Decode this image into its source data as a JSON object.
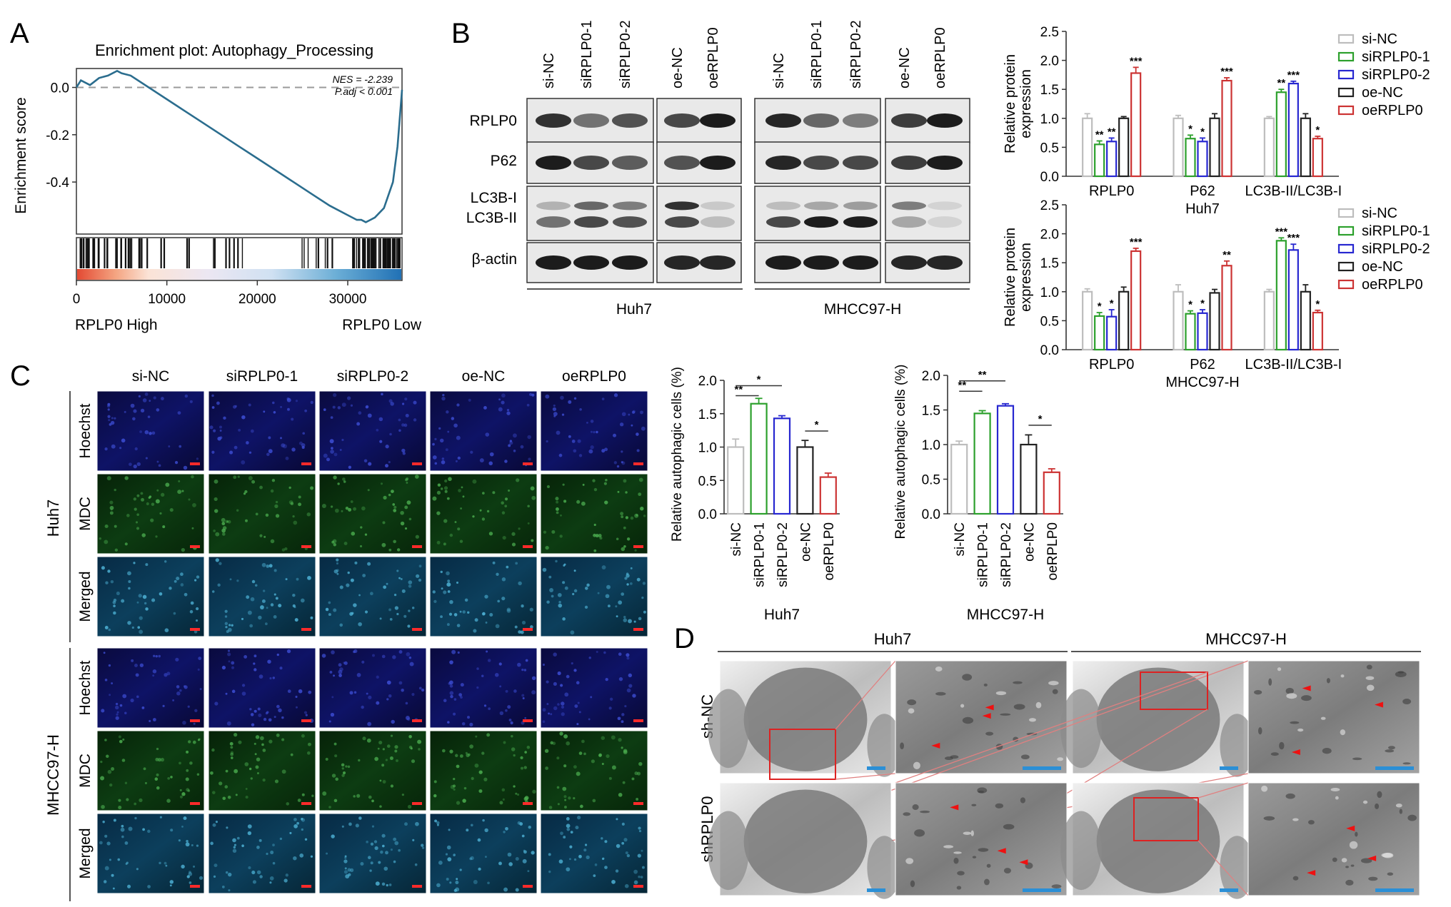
{
  "panels": {
    "A": {
      "letter": "A",
      "title": "Enrichment plot: Autophagy_Processing",
      "ylabel": "Enrichment score",
      "nes": "NES = -2.239",
      "padj": "P.adj < 0.001",
      "left_label": "RPLP0 High",
      "right_label": "RPLP0 Low"
    },
    "B": {
      "letter": "B",
      "lanes": [
        "si-NC",
        "siRPLP0-1",
        "siRPLP0-2",
        "oe-NC",
        "oeRPLP0"
      ],
      "rows": [
        "RPLP0",
        "P62",
        "LC3B-I",
        "LC3B-II",
        "β-actin"
      ],
      "cell_lines": [
        "Huh7",
        "MHCC97-H"
      ],
      "ylabel": "Relative protein expression"
    },
    "C": {
      "letter": "C",
      "columns": [
        "si-NC",
        "siRPLP0-1",
        "siRPLP0-2",
        "oe-NC",
        "oeRPLP0"
      ],
      "rows": [
        "Hoechst",
        "MDC",
        "Merged"
      ],
      "groups": [
        "Huh7",
        "MHCC97-H"
      ],
      "ylabel": "Relative autophagic cells (%)"
    },
    "D": {
      "letter": "D",
      "groups": [
        "Huh7",
        "MHCC97-H"
      ],
      "rows": [
        "sh-NC",
        "shRPLP0"
      ]
    }
  },
  "chart_data": [
    {
      "id": "A-gsea",
      "type": "line",
      "title": "Enrichment plot: Autophagy_Processing",
      "ylabel": "Enrichment score",
      "xlim": [
        0,
        36000
      ],
      "ylim": [
        -0.62,
        0.08
      ],
      "x_ticks": [
        0,
        10000,
        20000,
        30000
      ],
      "y_ticks": [
        0.0,
        -0.2,
        -0.4
      ],
      "x": [
        0,
        500,
        1500,
        2500,
        3500,
        4500,
        5000,
        6000,
        8000,
        10000,
        12000,
        14000,
        16000,
        18000,
        20000,
        22000,
        24000,
        26000,
        28000,
        30000,
        31000,
        31500,
        32000,
        32500,
        33000,
        34000,
        35000,
        35500,
        36000
      ],
      "y": [
        0.0,
        0.03,
        0.01,
        0.04,
        0.05,
        0.07,
        0.06,
        0.05,
        0.0,
        -0.05,
        -0.1,
        -0.15,
        -0.2,
        -0.25,
        -0.3,
        -0.35,
        -0.4,
        -0.45,
        -0.5,
        -0.54,
        -0.56,
        -0.56,
        -0.57,
        -0.56,
        -0.55,
        -0.51,
        -0.4,
        -0.25,
        -0.01
      ],
      "baseline": 0.0
    },
    {
      "id": "B-huh7",
      "type": "bar",
      "xlabel": "Huh7",
      "ylabel": "Relative protein expression",
      "ylim": [
        0,
        2.5
      ],
      "y_ticks": [
        0.0,
        0.5,
        1.0,
        1.5,
        2.0,
        2.5
      ],
      "categories": [
        "RPLP0",
        "P62",
        "LC3B-II/LC3B-I"
      ],
      "series": [
        {
          "name": "si-NC",
          "color": "#bdbdbd",
          "values": [
            1.0,
            1.0,
            1.0
          ],
          "errors": [
            0.08,
            0.05,
            0.03
          ],
          "sig": [
            "",
            "",
            ""
          ]
        },
        {
          "name": "siRPLP0-1",
          "color": "#2ca02c",
          "values": [
            0.55,
            0.65,
            1.45
          ],
          "errors": [
            0.06,
            0.06,
            0.05
          ],
          "sig": [
            "**",
            "*",
            "**"
          ]
        },
        {
          "name": "siRPLP0-2",
          "color": "#2727d0",
          "values": [
            0.6,
            0.6,
            1.6
          ],
          "errors": [
            0.06,
            0.06,
            0.04
          ],
          "sig": [
            "**",
            "*",
            "***"
          ]
        },
        {
          "name": "oe-NC",
          "color": "#222222",
          "values": [
            1.0,
            1.0,
            1.0
          ],
          "errors": [
            0.03,
            0.08,
            0.08
          ],
          "sig": [
            "",
            "",
            ""
          ]
        },
        {
          "name": "oeRPLP0",
          "color": "#cc3333",
          "values": [
            1.78,
            1.65,
            0.65
          ],
          "errors": [
            0.1,
            0.05,
            0.04
          ],
          "sig": [
            "***",
            "***",
            "*"
          ]
        }
      ]
    },
    {
      "id": "B-mhcc",
      "type": "bar",
      "xlabel": "MHCC97-H",
      "ylabel": "Relative protein expression",
      "ylim": [
        0,
        2.5
      ],
      "y_ticks": [
        0.0,
        0.5,
        1.0,
        1.5,
        2.0,
        2.5
      ],
      "categories": [
        "RPLP0",
        "P62",
        "LC3B-II/LC3B-I"
      ],
      "series": [
        {
          "name": "si-NC",
          "color": "#bdbdbd",
          "values": [
            1.0,
            1.0,
            1.0
          ],
          "errors": [
            0.05,
            0.12,
            0.04
          ],
          "sig": [
            "",
            "",
            ""
          ]
        },
        {
          "name": "siRPLP0-1",
          "color": "#2ca02c",
          "values": [
            0.58,
            0.62,
            1.88
          ],
          "errors": [
            0.06,
            0.05,
            0.05
          ],
          "sig": [
            "*",
            "*",
            "***"
          ]
        },
        {
          "name": "siRPLP0-2",
          "color": "#2727d0",
          "values": [
            0.57,
            0.63,
            1.72
          ],
          "errors": [
            0.12,
            0.06,
            0.1
          ],
          "sig": [
            "*",
            "*",
            "***"
          ]
        },
        {
          "name": "oe-NC",
          "color": "#222222",
          "values": [
            1.0,
            0.98,
            1.0
          ],
          "errors": [
            0.08,
            0.06,
            0.12
          ],
          "sig": [
            "",
            "",
            ""
          ]
        },
        {
          "name": "oeRPLP0",
          "color": "#cc3333",
          "values": [
            1.7,
            1.45,
            0.64
          ],
          "errors": [
            0.05,
            0.08,
            0.04
          ],
          "sig": [
            "***",
            "**",
            "*"
          ]
        }
      ]
    },
    {
      "id": "C-huh7",
      "type": "bar",
      "xlabel": "Huh7",
      "ylabel": "Relative autophagic cells (%)",
      "ylim": [
        0,
        2.0
      ],
      "y_ticks": [
        0.0,
        0.5,
        1.0,
        1.5,
        2.0
      ],
      "categories": [
        "si-NC",
        "siRPLP0-1",
        "siRPLP0-2",
        "oe-NC",
        "oeRPLP0"
      ],
      "values": [
        1.0,
        1.65,
        1.43,
        1.0,
        0.55
      ],
      "errors": [
        0.12,
        0.08,
        0.04,
        0.1,
        0.06
      ],
      "colors": [
        "#bdbdbd",
        "#2ca02c",
        "#2727d0",
        "#222222",
        "#cc3333"
      ],
      "brackets": [
        {
          "from": 0,
          "to": 1,
          "label": "**"
        },
        {
          "from": 0,
          "to": 2,
          "label": "*"
        },
        {
          "from": 3,
          "to": 4,
          "label": "*"
        }
      ]
    },
    {
      "id": "C-mhcc",
      "type": "bar",
      "xlabel": "MHCC97-H",
      "ylabel": "Relative autophagic cells (%)",
      "ylim": [
        0,
        2.0
      ],
      "y_ticks": [
        0.0,
        0.5,
        1.0,
        1.5,
        2.0
      ],
      "categories": [
        "si-NC",
        "siRPLP0-1",
        "siRPLP0-2",
        "oe-NC",
        "oeRPLP0"
      ],
      "values": [
        1.0,
        1.45,
        1.56,
        1.0,
        0.6
      ],
      "errors": [
        0.05,
        0.04,
        0.03,
        0.14,
        0.05
      ],
      "colors": [
        "#bdbdbd",
        "#2ca02c",
        "#2727d0",
        "#222222",
        "#cc3333"
      ],
      "brackets": [
        {
          "from": 0,
          "to": 1,
          "label": "**"
        },
        {
          "from": 0,
          "to": 2,
          "label": "**"
        },
        {
          "from": 3,
          "to": 4,
          "label": "*"
        }
      ]
    }
  ]
}
